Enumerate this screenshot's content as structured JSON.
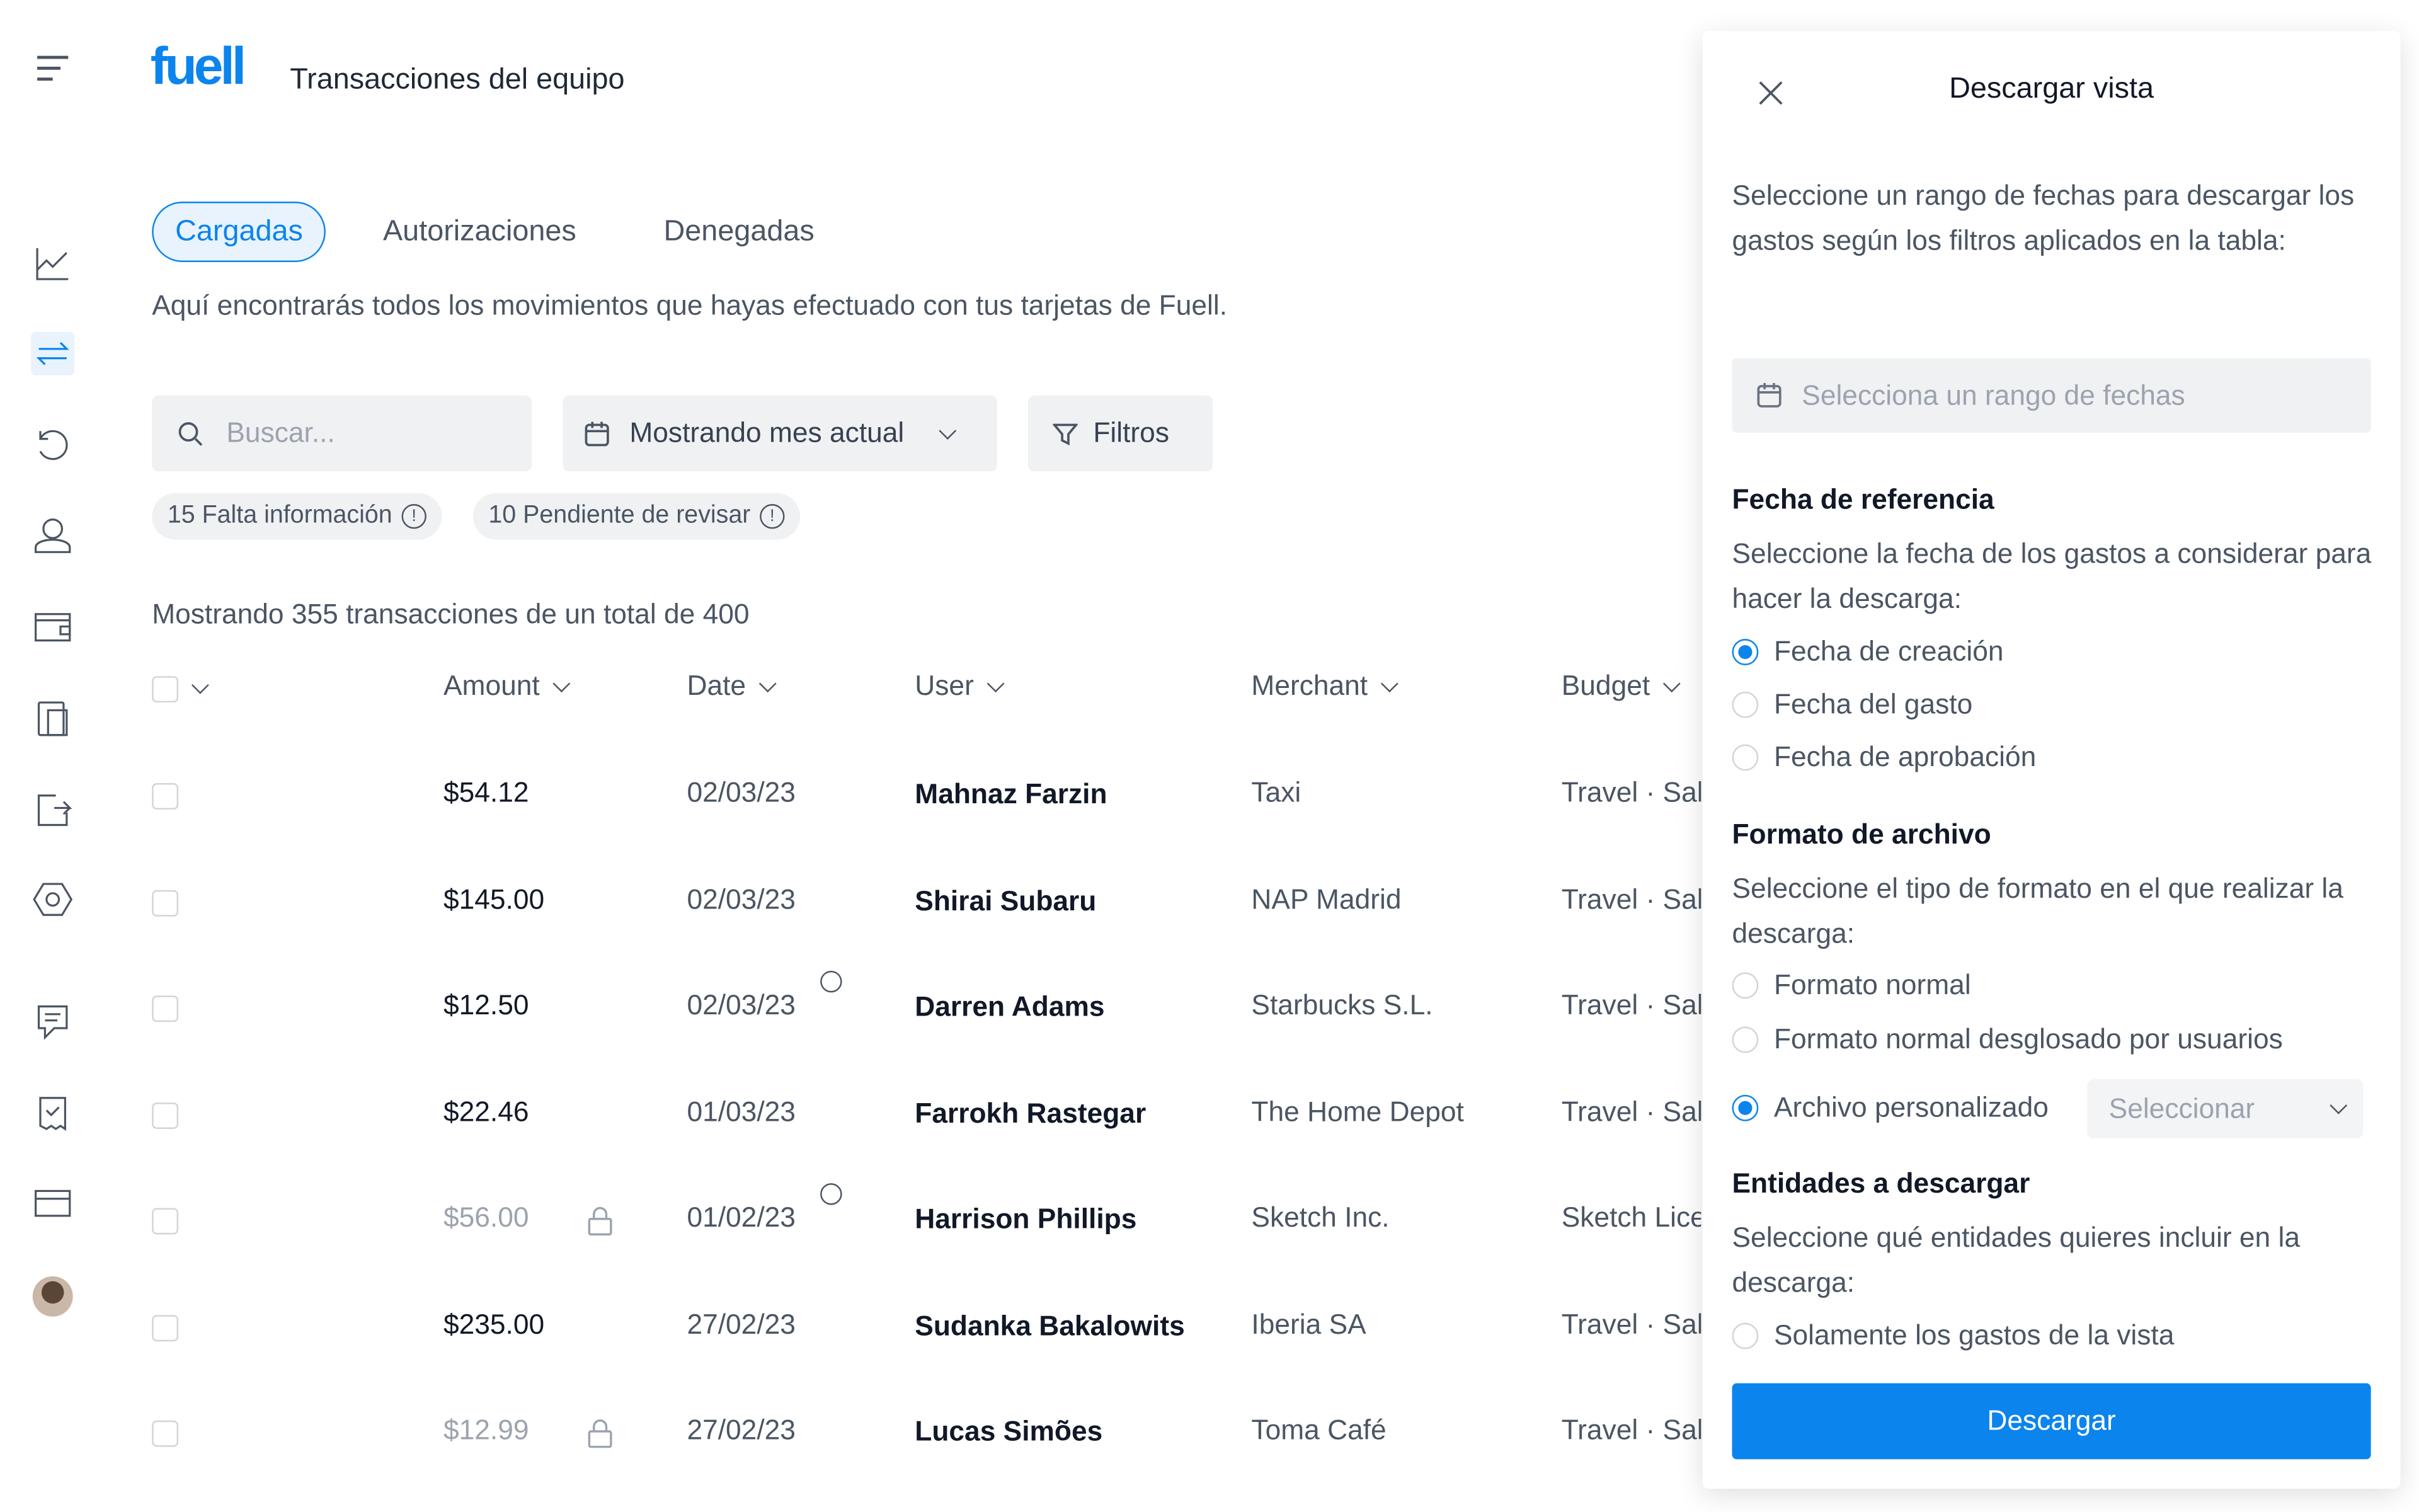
{
  "app": {
    "logo": "fuell",
    "page_title": "Transacciones del equipo"
  },
  "sidebar": {
    "items": [
      "menu-icon",
      "analytics-icon",
      "transactions-icon",
      "history-icon",
      "user-icon",
      "wallet-icon",
      "cards-icon",
      "export-icon",
      "settings-icon",
      "receipt-icon",
      "receipt-check-icon",
      "card-icon",
      "avatar"
    ],
    "active": "transactions-icon"
  },
  "tabs": [
    {
      "label": "Cargadas",
      "active": true
    },
    {
      "label": "Autorizaciones"
    },
    {
      "label": "Denegadas"
    }
  ],
  "description": "Aquí encontrarás todos los movimientos que hayas efectuado con tus tarjetas de Fuell.",
  "search": {
    "placeholder": "Buscar..."
  },
  "period_select": {
    "value": "Mostrando mes actual"
  },
  "filters_label": "Filtros",
  "chips": [
    {
      "label": "15 Falta información"
    },
    {
      "label": "10 Pendiente de revisar"
    }
  ],
  "count_text": "Mostrando 355 transacciones de un total de 400",
  "table": {
    "columns": [
      "Amount",
      "Date",
      "User",
      "Merchant",
      "Budget"
    ],
    "rows": [
      {
        "amount": "$54.12",
        "date": "02/03/23",
        "user": "Mahnaz Farzin",
        "merchant": "Taxi",
        "budget": "Travel · Sales",
        "locked": false,
        "clock": false
      },
      {
        "amount": "$145.00",
        "date": "02/03/23",
        "user": "Shirai Subaru",
        "merchant": "NAP Madrid",
        "budget": "Travel · Sales",
        "locked": false,
        "clock": false
      },
      {
        "amount": "$12.50",
        "date": "02/03/23",
        "user": "Darren Adams",
        "merchant": "Starbucks S.L.",
        "budget": "Travel · Sales",
        "locked": false,
        "clock": true
      },
      {
        "amount": "$22.46",
        "date": "01/03/23",
        "user": "Farrokh Rastegar",
        "merchant": "The Home Depot",
        "budget": "Travel · Sales",
        "locked": false,
        "clock": false
      },
      {
        "amount": "$56.00",
        "date": "01/02/23",
        "user": "Harrison Phillips",
        "merchant": "Sketch Inc.",
        "budget": "Sketch Licence",
        "locked": true,
        "clock": true
      },
      {
        "amount": "$235.00",
        "date": "27/02/23",
        "user": "Sudanka Bakalowits",
        "merchant": "Iberia SA",
        "budget": "Travel · Sales",
        "locked": false,
        "clock": false
      },
      {
        "amount": "$12.99",
        "date": "27/02/23",
        "user": "Lucas Simões",
        "merchant": "Toma Café",
        "budget": "Travel · Sales",
        "locked": true,
        "clock": false
      }
    ]
  },
  "panel": {
    "title": "Descargar vista",
    "intro": "Seleccione un rango de fechas para descargar los gastos según los filtros aplicados en la tabla:",
    "date_range_placeholder": "Selecciona un rango de fechas",
    "ref_title": "Fecha de referencia",
    "ref_desc": "Seleccione la fecha de los gastos a considerar para hacer la descarga:",
    "ref_options": [
      {
        "label": "Fecha de creación",
        "selected": true
      },
      {
        "label": "Fecha del gasto",
        "selected": false
      },
      {
        "label": "Fecha de aprobación",
        "selected": false
      }
    ],
    "format_title": "Formato de archivo",
    "format_desc": "Seleccione el tipo de formato en el que realizar la descarga:",
    "format_options": [
      {
        "label": "Formato normal",
        "selected": false
      },
      {
        "label": "Formato normal desglosado por usuarios",
        "selected": false
      },
      {
        "label": "Archivo personalizado",
        "selected": true
      }
    ],
    "custom_select_placeholder": "Seleccionar",
    "entities_title": "Entidades a descargar",
    "entities_desc": "Seleccione qué entidades quieres incluir en la descarga:",
    "entities_options": [
      {
        "label": "Solamente los gastos de la vista",
        "selected": false
      }
    ],
    "download_label": "Descargar"
  },
  "colors": {
    "accent": "#0b84ee",
    "chip_bg": "#f0f1f3"
  }
}
